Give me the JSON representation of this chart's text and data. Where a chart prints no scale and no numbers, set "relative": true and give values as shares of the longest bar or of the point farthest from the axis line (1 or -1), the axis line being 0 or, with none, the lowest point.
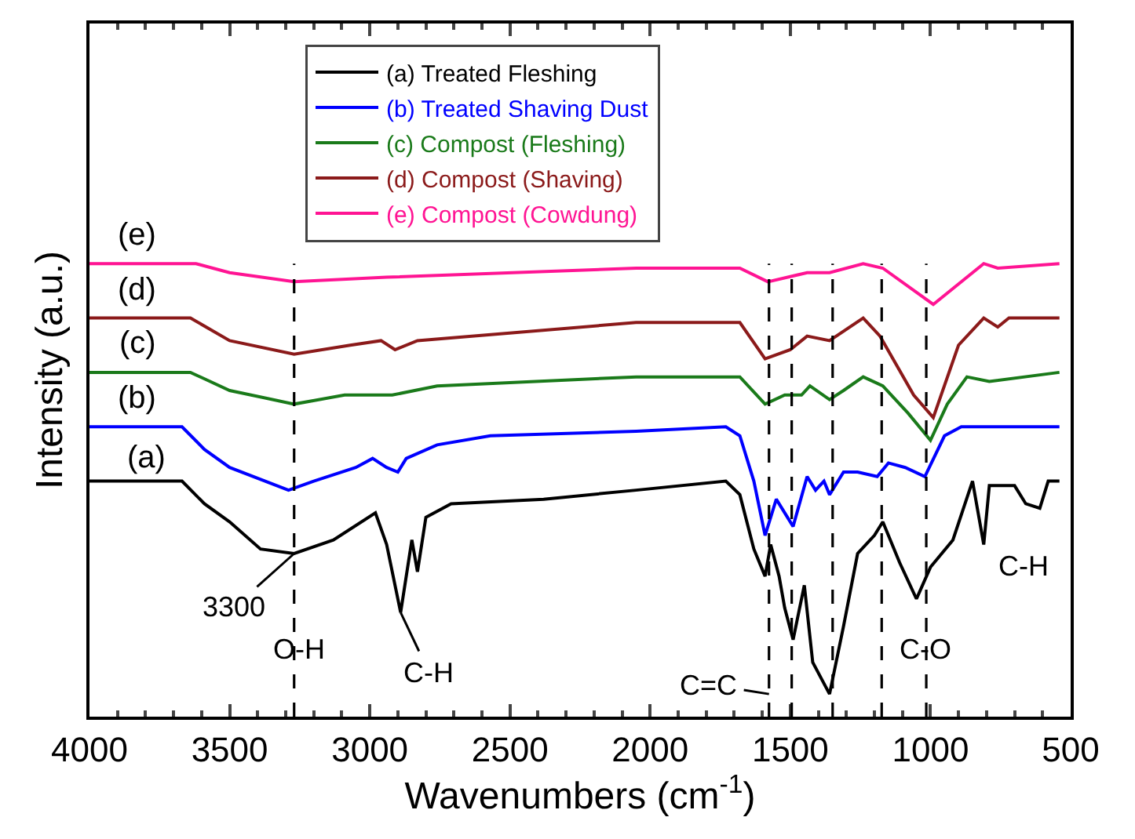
{
  "chart_data": {
    "type": "line",
    "relative": true,
    "xlabel": "Wavenumbers (cm$^{-1}$)",
    "ylabel": "Intensity (a.u.)",
    "xlim": [
      4000,
      500
    ],
    "xticks": [
      4000,
      3500,
      3000,
      2500,
      2000,
      1500,
      1000,
      500
    ],
    "legend": "top",
    "marker": "none",
    "line_style": "solid",
    "series": [
      {
        "name": "(a) Treated Fleshing",
        "color": "#000000",
        "x": [
          4000,
          3670,
          3590,
          3500,
          3390,
          3270,
          3130,
          2980,
          2940,
          2890,
          2850,
          2830,
          2800,
          2710,
          2380,
          2050,
          1730,
          1680,
          1630,
          1590,
          1570,
          1540,
          1520,
          1490,
          1450,
          1420,
          1360,
          1310,
          1260,
          1200,
          1170,
          1110,
          1050,
          1000,
          920,
          850,
          810,
          790,
          700,
          660,
          610,
          580,
          540
        ],
        "values": [
          0.52,
          0.52,
          0.47,
          0.43,
          0.37,
          0.36,
          0.39,
          0.45,
          0.38,
          0.23,
          0.39,
          0.32,
          0.44,
          0.47,
          0.48,
          0.5,
          0.52,
          0.49,
          0.37,
          0.31,
          0.38,
          0.31,
          0.24,
          0.17,
          0.29,
          0.12,
          0.05,
          0.2,
          0.36,
          0.4,
          0.43,
          0.34,
          0.26,
          0.33,
          0.39,
          0.52,
          0.38,
          0.51,
          0.51,
          0.47,
          0.46,
          0.52,
          0.52
        ]
      },
      {
        "name": "(b) Treated Shaving Dust",
        "color": "#0000ff",
        "x": [
          4000,
          3670,
          3590,
          3500,
          3290,
          3200,
          3050,
          2990,
          2940,
          2900,
          2870,
          2760,
          2570,
          2050,
          1730,
          1680,
          1630,
          1590,
          1550,
          1490,
          1440,
          1410,
          1380,
          1360,
          1310,
          1260,
          1190,
          1150,
          1090,
          1020,
          950,
          890,
          540
        ],
        "values": [
          0.64,
          0.64,
          0.59,
          0.55,
          0.5,
          0.52,
          0.55,
          0.57,
          0.55,
          0.54,
          0.57,
          0.6,
          0.62,
          0.63,
          0.64,
          0.62,
          0.52,
          0.4,
          0.48,
          0.42,
          0.53,
          0.5,
          0.52,
          0.49,
          0.54,
          0.54,
          0.53,
          0.56,
          0.55,
          0.53,
          0.62,
          0.64,
          0.64
        ]
      },
      {
        "name": "(c) Compost (Fleshing)",
        "color": "#1a7a1a",
        "x": [
          4000,
          3640,
          3500,
          3270,
          3090,
          2920,
          2760,
          2050,
          1680,
          1590,
          1520,
          1460,
          1430,
          1360,
          1310,
          1240,
          1170,
          1080,
          1000,
          940,
          870,
          790,
          540
        ],
        "values": [
          0.76,
          0.76,
          0.72,
          0.69,
          0.71,
          0.71,
          0.73,
          0.75,
          0.75,
          0.69,
          0.71,
          0.71,
          0.73,
          0.7,
          0.72,
          0.75,
          0.73,
          0.67,
          0.61,
          0.69,
          0.75,
          0.74,
          0.76
        ]
      },
      {
        "name": "(d) Compost (Shaving)",
        "color": "#8b1a1a",
        "x": [
          4000,
          3640,
          3500,
          3270,
          3070,
          2960,
          2910,
          2830,
          2050,
          1680,
          1590,
          1500,
          1440,
          1360,
          1240,
          1180,
          1060,
          990,
          900,
          810,
          760,
          720,
          540
        ],
        "values": [
          0.88,
          0.88,
          0.83,
          0.8,
          0.82,
          0.83,
          0.81,
          0.83,
          0.87,
          0.87,
          0.79,
          0.81,
          0.84,
          0.83,
          0.88,
          0.84,
          0.71,
          0.66,
          0.82,
          0.88,
          0.86,
          0.88,
          0.88
        ]
      },
      {
        "name": "(e) Compost (Cowdung)",
        "color": "#ff1493",
        "x": [
          4000,
          3620,
          3500,
          3270,
          2940,
          2050,
          1680,
          1580,
          1440,
          1360,
          1240,
          1170,
          990,
          810,
          760,
          540
        ],
        "values": [
          1.0,
          1.0,
          0.98,
          0.96,
          0.97,
          0.99,
          0.99,
          0.96,
          0.98,
          0.98,
          1.0,
          0.99,
          0.91,
          1.0,
          0.99,
          1.0
        ]
      }
    ],
    "ref_lines": [
      {
        "axis": "x",
        "value": 3270,
        "line_style": "dashed",
        "color": "#000000"
      },
      {
        "axis": "x",
        "value": 1576,
        "line_style": "dashed",
        "color": "#000000"
      },
      {
        "axis": "x",
        "value": 1495,
        "line_style": "dashed",
        "color": "#000000"
      },
      {
        "axis": "x",
        "value": 1349,
        "line_style": "dashed",
        "color": "#000000"
      },
      {
        "axis": "x",
        "value": 1174,
        "line_style": "dashed",
        "color": "#000000"
      },
      {
        "axis": "x",
        "value": 1015,
        "line_style": "dashed",
        "color": "#000000"
      }
    ],
    "annotations": [
      {
        "text": "3300",
        "x": 3270,
        "y": 0.36
      },
      {
        "text": "O-H",
        "x": 3250,
        "y": 0.15
      },
      {
        "text": "C-H",
        "x": 2890,
        "y": 0.23
      },
      {
        "text": "C=C",
        "x": 1576,
        "y": 0.05
      },
      {
        "text": "C-O",
        "x": 1020,
        "y": 0.15
      },
      {
        "text": "C-H",
        "x": 810,
        "y": 0.38
      },
      {
        "text": "(e)",
        "x": 3830,
        "y": 1.0
      },
      {
        "text": "(d)",
        "x": 3830,
        "y": 0.88
      },
      {
        "text": "(c)",
        "x": 3830,
        "y": 0.76
      },
      {
        "text": "(b)",
        "x": 3830,
        "y": 0.64
      },
      {
        "text": "(a)",
        "x": 3800,
        "y": 0.52
      }
    ]
  }
}
